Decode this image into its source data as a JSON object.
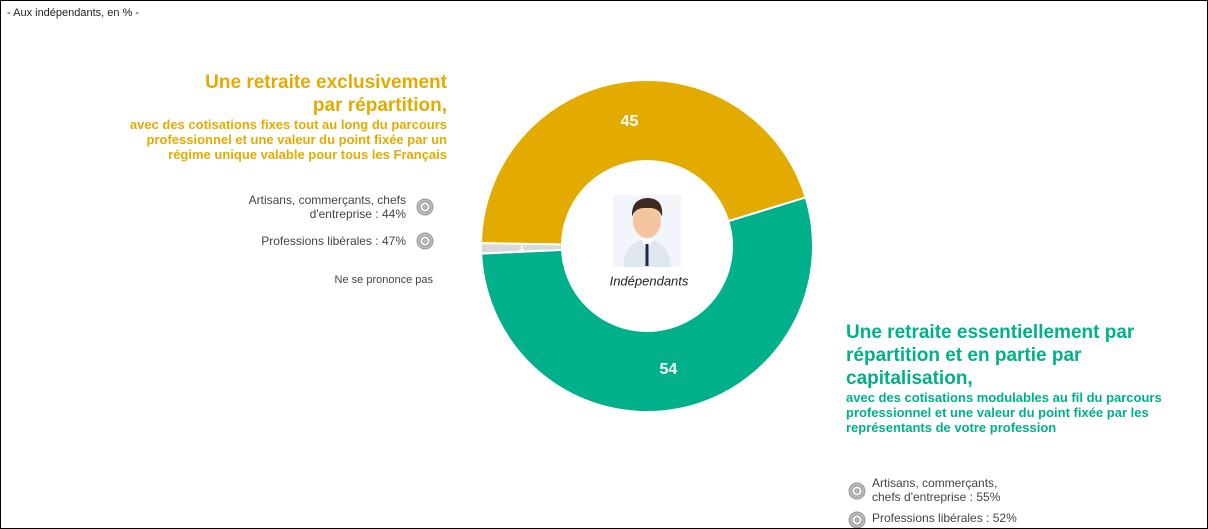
{
  "chart_data": {
    "type": "donut",
    "subtitle": "- Aux indépendants, en % -",
    "center_label": "Indépendants",
    "categories": [
      "Une retraite exclusivement par répartition,",
      "Une retraite essentiellement par répartition et en partie par capitalisation,",
      "Ne se prononce pas"
    ],
    "values": [
      45,
      54,
      1
    ],
    "colors": [
      "#e3ab00",
      "#00b08a",
      "#d9d9d9"
    ],
    "notes": [
      {
        "description": "avec des cotisations fixes tout au long du parcours professionnel et une valeur du point fixée par un régime unique valable pour tous les Français",
        "groups": [
          "Artisans, commerçants, chefs d'entreprise : 44%",
          "Professions libérales : 47%"
        ]
      },
      {
        "description": "avec des cotisations modulables au fil du parcours professionnel et une valeur du point fixée par les représentants de votre profession",
        "groups": [
          "Artisans, commerçants, chefs d'entreprise : 55%",
          "Professions libérales : 52%"
        ]
      }
    ]
  }
}
